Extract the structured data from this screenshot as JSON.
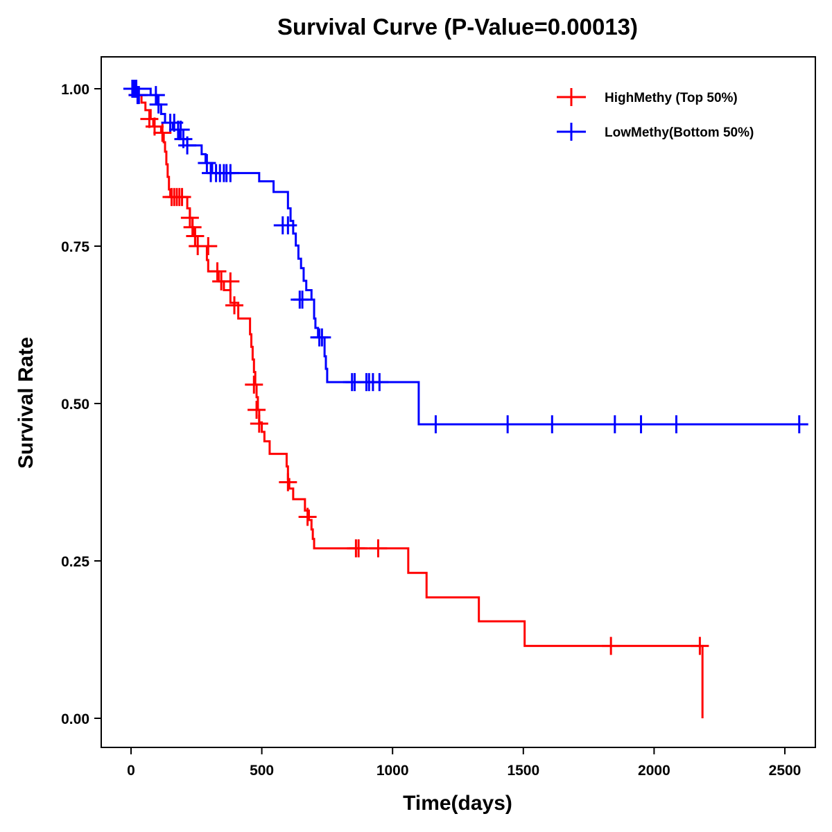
{
  "chart_data": {
    "type": "line",
    "subtype": "kaplan-meier",
    "title": "Survival Curve (P-Value=0.00013)",
    "xlabel": "Time(days)",
    "ylabel": "Survival Rate",
    "xlim": [
      -110,
      2610
    ],
    "ylim": [
      -0.05,
      1.05
    ],
    "xticks": [
      0,
      500,
      1000,
      1500,
      2000,
      2500
    ],
    "xtick_labels": [
      "0",
      "500",
      "1000",
      "1500",
      "2000",
      "2500"
    ],
    "yticks": [
      0,
      0.25,
      0.5,
      0.75,
      1.0
    ],
    "ytick_labels": [
      "0.00",
      "0.25",
      "0.50",
      "0.75",
      "1.00"
    ],
    "grid": false,
    "legend_position": "top-right",
    "series": [
      {
        "name": "HighMethy (Top 50%)",
        "color": "#ff0000",
        "steps": [
          [
            0,
            1.0
          ],
          [
            15,
            0.99
          ],
          [
            40,
            0.978
          ],
          [
            55,
            0.966
          ],
          [
            75,
            0.952
          ],
          [
            85,
            0.94
          ],
          [
            115,
            0.93
          ],
          [
            125,
            0.915
          ],
          [
            130,
            0.9
          ],
          [
            135,
            0.88
          ],
          [
            140,
            0.86
          ],
          [
            145,
            0.84
          ],
          [
            150,
            0.828
          ],
          [
            215,
            0.81
          ],
          [
            225,
            0.795
          ],
          [
            235,
            0.78
          ],
          [
            240,
            0.766
          ],
          [
            245,
            0.75
          ],
          [
            290,
            0.728
          ],
          [
            295,
            0.71
          ],
          [
            335,
            0.694
          ],
          [
            355,
            0.68
          ],
          [
            380,
            0.66
          ],
          [
            410,
            0.635
          ],
          [
            455,
            0.61
          ],
          [
            460,
            0.59
          ],
          [
            465,
            0.57
          ],
          [
            470,
            0.55
          ],
          [
            475,
            0.53
          ],
          [
            480,
            0.51
          ],
          [
            485,
            0.49
          ],
          [
            490,
            0.47
          ],
          [
            500,
            0.455
          ],
          [
            510,
            0.44
          ],
          [
            530,
            0.42
          ],
          [
            595,
            0.4
          ],
          [
            600,
            0.38
          ],
          [
            605,
            0.365
          ],
          [
            620,
            0.348
          ],
          [
            665,
            0.33
          ],
          [
            680,
            0.315
          ],
          [
            690,
            0.3
          ],
          [
            695,
            0.285
          ],
          [
            700,
            0.27
          ],
          [
            1060,
            0.231
          ],
          [
            1130,
            0.192
          ],
          [
            1330,
            0.154
          ],
          [
            1505,
            0.115
          ],
          [
            2185,
            0.0
          ]
        ],
        "end_time": 2185,
        "censored": [
          [
            25,
            0.99
          ],
          [
            70,
            0.952
          ],
          [
            90,
            0.94
          ],
          [
            120,
            0.93
          ],
          [
            155,
            0.828
          ],
          [
            165,
            0.828
          ],
          [
            175,
            0.828
          ],
          [
            185,
            0.828
          ],
          [
            195,
            0.828
          ],
          [
            225,
            0.795
          ],
          [
            235,
            0.78
          ],
          [
            245,
            0.766
          ],
          [
            255,
            0.75
          ],
          [
            295,
            0.75
          ],
          [
            330,
            0.71
          ],
          [
            345,
            0.694
          ],
          [
            380,
            0.694
          ],
          [
            395,
            0.656
          ],
          [
            470,
            0.53
          ],
          [
            480,
            0.49
          ],
          [
            490,
            0.468
          ],
          [
            600,
            0.375
          ],
          [
            675,
            0.32
          ],
          [
            860,
            0.27
          ],
          [
            870,
            0.27
          ],
          [
            945,
            0.27
          ],
          [
            1835,
            0.115
          ],
          [
            2175,
            0.115
          ]
        ]
      },
      {
        "name": "LowMethy(Bottom 50%)",
        "color": "#0000ff",
        "steps": [
          [
            0,
            1.0
          ],
          [
            75,
            0.99
          ],
          [
            100,
            0.975
          ],
          [
            115,
            0.96
          ],
          [
            130,
            0.946
          ],
          [
            160,
            0.935
          ],
          [
            185,
            0.92
          ],
          [
            215,
            0.91
          ],
          [
            270,
            0.896
          ],
          [
            285,
            0.882
          ],
          [
            310,
            0.866
          ],
          [
            480,
            0.866
          ],
          [
            490,
            0.853
          ],
          [
            545,
            0.836
          ],
          [
            600,
            0.81
          ],
          [
            610,
            0.79
          ],
          [
            620,
            0.77
          ],
          [
            630,
            0.751
          ],
          [
            640,
            0.73
          ],
          [
            650,
            0.715
          ],
          [
            660,
            0.695
          ],
          [
            670,
            0.68
          ],
          [
            690,
            0.665
          ],
          [
            700,
            0.635
          ],
          [
            705,
            0.62
          ],
          [
            715,
            0.605
          ],
          [
            740,
            0.575
          ],
          [
            745,
            0.555
          ],
          [
            750,
            0.534
          ],
          [
            1100,
            0.467
          ]
        ],
        "end_time": 2560,
        "censored": [
          [
            5,
            1.0
          ],
          [
            10,
            1.0
          ],
          [
            15,
            1.0
          ],
          [
            20,
            1.0
          ],
          [
            25,
            0.99
          ],
          [
            30,
            0.99
          ],
          [
            95,
            0.99
          ],
          [
            105,
            0.975
          ],
          [
            150,
            0.946
          ],
          [
            165,
            0.946
          ],
          [
            180,
            0.935
          ],
          [
            190,
            0.935
          ],
          [
            200,
            0.92
          ],
          [
            215,
            0.91
          ],
          [
            290,
            0.882
          ],
          [
            305,
            0.866
          ],
          [
            325,
            0.866
          ],
          [
            340,
            0.866
          ],
          [
            355,
            0.866
          ],
          [
            365,
            0.866
          ],
          [
            380,
            0.866
          ],
          [
            580,
            0.783
          ],
          [
            600,
            0.783
          ],
          [
            645,
            0.665
          ],
          [
            655,
            0.665
          ],
          [
            720,
            0.605
          ],
          [
            730,
            0.605
          ],
          [
            845,
            0.534
          ],
          [
            855,
            0.534
          ],
          [
            900,
            0.534
          ],
          [
            910,
            0.534
          ],
          [
            925,
            0.534
          ],
          [
            950,
            0.534
          ],
          [
            1165,
            0.467
          ],
          [
            1440,
            0.467
          ],
          [
            1610,
            0.467
          ],
          [
            1850,
            0.467
          ],
          [
            1950,
            0.467
          ],
          [
            2085,
            0.467
          ],
          [
            2555,
            0.467
          ]
        ]
      }
    ]
  }
}
